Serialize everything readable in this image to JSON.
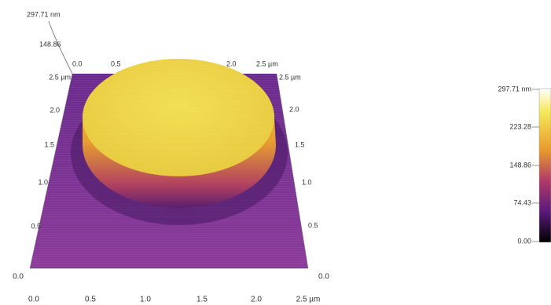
{
  "z_axis": {
    "max": "297.71 nm",
    "mid": "148.86"
  },
  "top_axis": [
    "0.0",
    "0.5",
    "2.0",
    "2.5 µm"
  ],
  "left_axis": [
    "2.5 µm",
    "2.0",
    "1.5",
    "1.0",
    "0.5",
    "0.0"
  ],
  "right_axis": [
    "2.5 µm",
    "2.0",
    "1.5",
    "1.0",
    "0.5",
    "0.0"
  ],
  "bottom_axis": [
    "0.0",
    "0.5",
    "1.0",
    "1.5",
    "2.0",
    "2.5 µm"
  ],
  "colorbar": {
    "labels": [
      "297.71 nm",
      "223.28",
      "148.86",
      "74.43",
      "0.00"
    ]
  }
}
